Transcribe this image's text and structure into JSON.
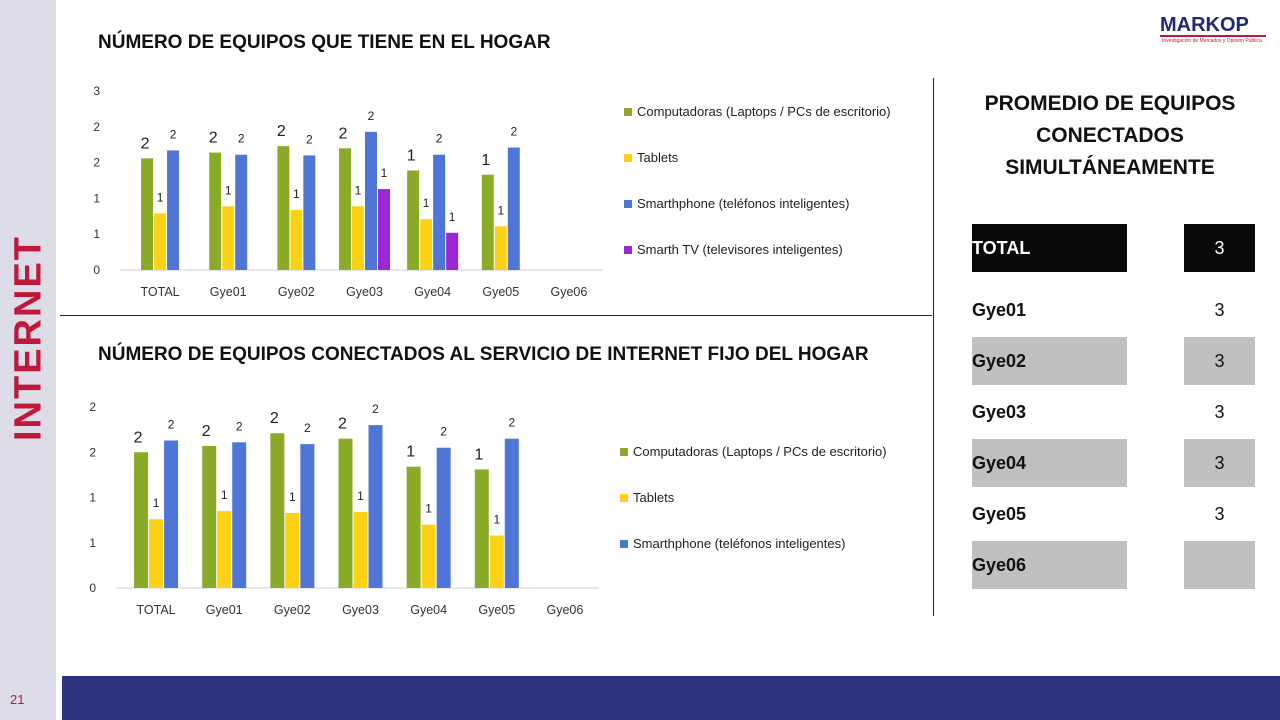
{
  "section_label": "INTERNET",
  "page_number": "21",
  "logo": {
    "brand": "MARKOP",
    "tagline": "Investigación de Mercados y Opinión Pública"
  },
  "colors": {
    "computadoras": "#8aab27",
    "tablets": "#fcd116",
    "smartphone": "#4f75d6",
    "smart_tv": "#9b28d4",
    "footer": "#2c3480",
    "accent": "#c0183a"
  },
  "chart_data": [
    {
      "type": "bar",
      "title": "NÚMERO DE EQUIPOS QUE TIENE EN EL HOGAR",
      "categories": [
        "TOTAL",
        "Gye01",
        "Gye02",
        "Gye03",
        "Gye04",
        "Gye05",
        "Gye06"
      ],
      "y_tick_labels": [
        "0",
        "1",
        "1",
        "2",
        "2",
        "3"
      ],
      "ylim": [
        0,
        2.5
      ],
      "legend_position": "right",
      "series": [
        {
          "name": "Computadoras (Laptops / PCs de escritorio)",
          "color": "#8aab27",
          "values": [
            1.56,
            1.64,
            1.73,
            1.7,
            1.39,
            1.33,
            null
          ],
          "labels": [
            "2",
            "2",
            "2",
            "2",
            "1",
            "1",
            ""
          ]
        },
        {
          "name": "Tablets",
          "color": "#fcd116",
          "values": [
            0.79,
            0.89,
            0.84,
            0.89,
            0.71,
            0.61,
            null
          ],
          "labels": [
            "1",
            "1",
            "1",
            "1",
            "1",
            "1",
            ""
          ]
        },
        {
          "name": "Smarthphone (teléfonos inteligentes)",
          "color": "#4f75d6",
          "values": [
            1.67,
            1.61,
            1.6,
            1.93,
            1.61,
            1.71,
            null
          ],
          "labels": [
            "2",
            "2",
            "2",
            "2",
            "2",
            "2",
            ""
          ]
        },
        {
          "name": "Smarth TV (televisores inteligentes)",
          "color": "#9b28d4",
          "values": [
            null,
            null,
            null,
            1.13,
            0.52,
            null,
            null
          ],
          "labels": [
            "",
            "",
            "",
            "1",
            "1",
            "",
            ""
          ]
        }
      ]
    },
    {
      "type": "bar",
      "title": "NÚMERO DE EQUIPOS CONECTADOS AL SERVICIO DE INTERNET FIJO DEL HOGAR",
      "categories": [
        "TOTAL",
        "Gye01",
        "Gye02",
        "Gye03",
        "Gye04",
        "Gye05",
        "Gye06"
      ],
      "y_tick_labels": [
        "0",
        "1",
        "1",
        "2",
        "2"
      ],
      "ylim": [
        0,
        2.0
      ],
      "legend_position": "right",
      "series": [
        {
          "name": "Computadoras (Laptops / PCs de escritorio)",
          "color": "#8aab27",
          "values": [
            1.5,
            1.57,
            1.71,
            1.65,
            1.34,
            1.31,
            null
          ],
          "labels": [
            "2",
            "2",
            "2",
            "2",
            "1",
            "1",
            ""
          ]
        },
        {
          "name": "Tablets",
          "color": "#fcd116",
          "values": [
            0.76,
            0.85,
            0.83,
            0.84,
            0.7,
            0.58,
            null
          ],
          "labels": [
            "1",
            "1",
            "1",
            "1",
            "1",
            "1",
            ""
          ]
        },
        {
          "name": "Smarthphone (teléfonos inteligentes)",
          "color": "#4f75d6",
          "values": [
            1.63,
            1.61,
            1.59,
            1.8,
            1.55,
            1.65,
            null
          ],
          "labels": [
            "2",
            "2",
            "2",
            "2",
            "2",
            "2",
            ""
          ]
        }
      ]
    }
  ],
  "promedio": {
    "title": "PROMEDIO DE EQUIPOS CONECTADOS SIMULTÁNEAMENTE",
    "rows": [
      {
        "label": "TOTAL",
        "value": "3"
      },
      {
        "label": "Gye01",
        "value": "3"
      },
      {
        "label": "Gye02",
        "value": "3"
      },
      {
        "label": "Gye03",
        "value": "3"
      },
      {
        "label": "Gye04",
        "value": "3"
      },
      {
        "label": "Gye05",
        "value": "3"
      },
      {
        "label": "Gye06",
        "value": ""
      }
    ]
  }
}
